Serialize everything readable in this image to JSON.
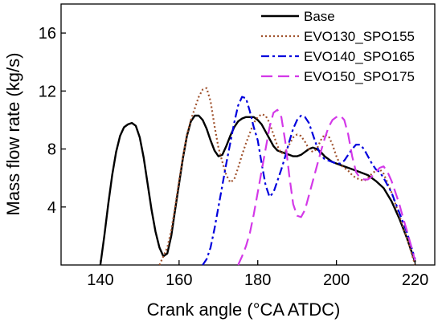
{
  "chart_data": {
    "type": "line",
    "title": "",
    "xlabel": "Crank angle (°CA ATDC)",
    "ylabel": "Mass flow rate (kg/s)",
    "xlim": [
      130,
      225
    ],
    "ylim": [
      0,
      18
    ],
    "xticks": [
      140,
      160,
      180,
      200,
      220
    ],
    "yticks": [
      4,
      8,
      12,
      16
    ],
    "grid": false,
    "legend_position": "top-right",
    "series": [
      {
        "name": "Base",
        "color": "#000000",
        "dash": "solid",
        "points": [
          [
            140,
            0
          ],
          [
            141,
            2
          ],
          [
            142,
            4.2
          ],
          [
            143,
            6.2
          ],
          [
            144,
            7.8
          ],
          [
            145,
            8.9
          ],
          [
            146,
            9.5
          ],
          [
            147,
            9.7
          ],
          [
            148,
            9.8
          ],
          [
            149,
            9.6
          ],
          [
            150,
            8.8
          ],
          [
            151,
            7.4
          ],
          [
            152,
            5.6
          ],
          [
            153,
            3.8
          ],
          [
            154,
            2.3
          ],
          [
            155,
            1.2
          ],
          [
            156,
            0.6
          ],
          [
            157,
            0.8
          ],
          [
            158,
            2
          ],
          [
            159,
            3.8
          ],
          [
            160,
            5.6
          ],
          [
            161,
            7.4
          ],
          [
            162,
            8.9
          ],
          [
            163,
            9.9
          ],
          [
            164,
            10.3
          ],
          [
            165,
            10.3
          ],
          [
            166,
            10
          ],
          [
            167,
            9.4
          ],
          [
            168,
            8.6
          ],
          [
            169,
            7.9
          ],
          [
            170,
            7.5
          ],
          [
            171,
            7.6
          ],
          [
            172,
            8.2
          ],
          [
            173,
            8.9
          ],
          [
            174,
            9.5
          ],
          [
            175,
            9.9
          ],
          [
            176,
            10.1
          ],
          [
            177,
            10.2
          ],
          [
            178,
            10.2
          ],
          [
            179,
            10.2
          ],
          [
            180,
            10
          ],
          [
            181,
            9.7
          ],
          [
            182,
            9.2
          ],
          [
            183,
            8.7
          ],
          [
            184,
            8.2
          ],
          [
            185,
            7.9
          ],
          [
            186,
            7.8
          ],
          [
            187,
            7.7
          ],
          [
            188,
            7.6
          ],
          [
            189,
            7.5
          ],
          [
            190,
            7.5
          ],
          [
            191,
            7.6
          ],
          [
            192,
            7.8
          ],
          [
            193,
            8
          ],
          [
            194,
            8.1
          ],
          [
            195,
            8
          ],
          [
            196,
            7.8
          ],
          [
            197,
            7.5
          ],
          [
            198,
            7.3
          ],
          [
            199,
            7.1
          ],
          [
            200,
            7
          ],
          [
            202,
            6.8
          ],
          [
            204,
            6.6
          ],
          [
            206,
            6.4
          ],
          [
            208,
            6.2
          ],
          [
            210,
            5.8
          ],
          [
            212,
            5.3
          ],
          [
            214,
            4.4
          ],
          [
            216,
            3.2
          ],
          [
            218,
            1.8
          ],
          [
            219,
            1
          ],
          [
            220,
            0.2
          ]
        ]
      },
      {
        "name": "EVO130_SPO155",
        "color": "#a0522d",
        "dash": "dotted",
        "points": [
          [
            155,
            0
          ],
          [
            157,
            1.2
          ],
          [
            158,
            2.4
          ],
          [
            159,
            4
          ],
          [
            160,
            5.8
          ],
          [
            161,
            7.5
          ],
          [
            162,
            9
          ],
          [
            163,
            10
          ],
          [
            164,
            10.8
          ],
          [
            165,
            11.6
          ],
          [
            166,
            12.1
          ],
          [
            167,
            12.2
          ],
          [
            168,
            11.3
          ],
          [
            169,
            9.6
          ],
          [
            170,
            8.1
          ],
          [
            171,
            7.1
          ],
          [
            172,
            6.2
          ],
          [
            173,
            5.7
          ],
          [
            174,
            5.9
          ],
          [
            175,
            6.7
          ],
          [
            176,
            7.6
          ],
          [
            177,
            8.4
          ],
          [
            178,
            9.1
          ],
          [
            179,
            9.8
          ],
          [
            180,
            10.2
          ],
          [
            181,
            10.4
          ],
          [
            182,
            10.3
          ],
          [
            183,
            9.8
          ],
          [
            184,
            9
          ],
          [
            185,
            8.2
          ],
          [
            186,
            7.7
          ],
          [
            187,
            7.8
          ],
          [
            188,
            8.3
          ],
          [
            189,
            8.8
          ],
          [
            190,
            9
          ],
          [
            191,
            8.9
          ],
          [
            192,
            8.5
          ],
          [
            193,
            8
          ],
          [
            194,
            7.8
          ],
          [
            195,
            8
          ],
          [
            196,
            8.6
          ],
          [
            197,
            9
          ],
          [
            198,
            8.9
          ],
          [
            199,
            8.3
          ],
          [
            200,
            7.5
          ],
          [
            201,
            6.9
          ],
          [
            202,
            6.7
          ],
          [
            203,
            6.5
          ],
          [
            204,
            6.2
          ],
          [
            205,
            6
          ],
          [
            206,
            5.9
          ],
          [
            207,
            5.8
          ],
          [
            208,
            6
          ],
          [
            209,
            6.3
          ],
          [
            210,
            6.5
          ],
          [
            211,
            6.6
          ],
          [
            212,
            6.3
          ],
          [
            214,
            5
          ],
          [
            216,
            3.4
          ],
          [
            218,
            1.8
          ],
          [
            220,
            0
          ]
        ]
      },
      {
        "name": "EVO140_SPO165",
        "color": "#0000dd",
        "dash": "dashdot",
        "points": [
          [
            166,
            0
          ],
          [
            167,
            0.4
          ],
          [
            168,
            1.2
          ],
          [
            169,
            2.5
          ],
          [
            170,
            4
          ],
          [
            171,
            5.5
          ],
          [
            172,
            7
          ],
          [
            173,
            8.4
          ],
          [
            174,
            9.8
          ],
          [
            175,
            11
          ],
          [
            176,
            11.6
          ],
          [
            177,
            11.5
          ],
          [
            178,
            10.6
          ],
          [
            179,
            9.5
          ],
          [
            180,
            8.6
          ],
          [
            181,
            7
          ],
          [
            182,
            5.5
          ],
          [
            183,
            4.7
          ],
          [
            184,
            5
          ],
          [
            185,
            5.8
          ],
          [
            186,
            6.6
          ],
          [
            187,
            7.5
          ],
          [
            188,
            8.5
          ],
          [
            189,
            9.4
          ],
          [
            190,
            10
          ],
          [
            191,
            10.3
          ],
          [
            192,
            10.2
          ],
          [
            193,
            9.8
          ],
          [
            194,
            9
          ],
          [
            195,
            8.2
          ],
          [
            196,
            7.6
          ],
          [
            197,
            7.3
          ],
          [
            198,
            7.2
          ],
          [
            199,
            7.1
          ],
          [
            200,
            7
          ],
          [
            201,
            7
          ],
          [
            202,
            7.2
          ],
          [
            203,
            7.6
          ],
          [
            204,
            8
          ],
          [
            205,
            8.3
          ],
          [
            206,
            8.3
          ],
          [
            207,
            8
          ],
          [
            208,
            7.5
          ],
          [
            209,
            7
          ],
          [
            210,
            6.6
          ],
          [
            211,
            6.4
          ],
          [
            212,
            6
          ],
          [
            214,
            5
          ],
          [
            216,
            3.6
          ],
          [
            218,
            2.2
          ],
          [
            220,
            0.4
          ]
        ]
      },
      {
        "name": "EVO150_SPO175",
        "color": "#d338e8",
        "dash": "dashed",
        "points": [
          [
            175,
            0
          ],
          [
            176,
            0.6
          ],
          [
            177,
            1.3
          ],
          [
            178,
            2.2
          ],
          [
            179,
            3.5
          ],
          [
            180,
            5
          ],
          [
            181,
            6.5
          ],
          [
            182,
            8
          ],
          [
            183,
            9.5
          ],
          [
            184,
            10.5
          ],
          [
            185,
            10.7
          ],
          [
            186,
            10.2
          ],
          [
            187,
            8.5
          ],
          [
            188,
            6.2
          ],
          [
            189,
            4.2
          ],
          [
            190,
            3.4
          ],
          [
            191,
            3.3
          ],
          [
            192,
            3.8
          ],
          [
            193,
            4.8
          ],
          [
            194,
            5.8
          ],
          [
            195,
            6.8
          ],
          [
            196,
            7.8
          ],
          [
            197,
            8.7
          ],
          [
            198,
            9.5
          ],
          [
            199,
            10
          ],
          [
            200,
            10.2
          ],
          [
            201,
            10.3
          ],
          [
            202,
            10
          ],
          [
            203,
            9
          ],
          [
            204,
            7.5
          ],
          [
            205,
            6.4
          ],
          [
            206,
            6
          ],
          [
            207,
            5.9
          ],
          [
            208,
            5.9
          ],
          [
            209,
            6.1
          ],
          [
            210,
            6.4
          ],
          [
            211,
            6.7
          ],
          [
            212,
            6.8
          ],
          [
            213,
            6.4
          ],
          [
            214,
            5.8
          ],
          [
            215,
            5
          ],
          [
            216,
            4.2
          ],
          [
            217,
            3.2
          ],
          [
            218,
            2.3
          ],
          [
            219,
            1.3
          ],
          [
            220,
            0.3
          ]
        ]
      }
    ]
  }
}
